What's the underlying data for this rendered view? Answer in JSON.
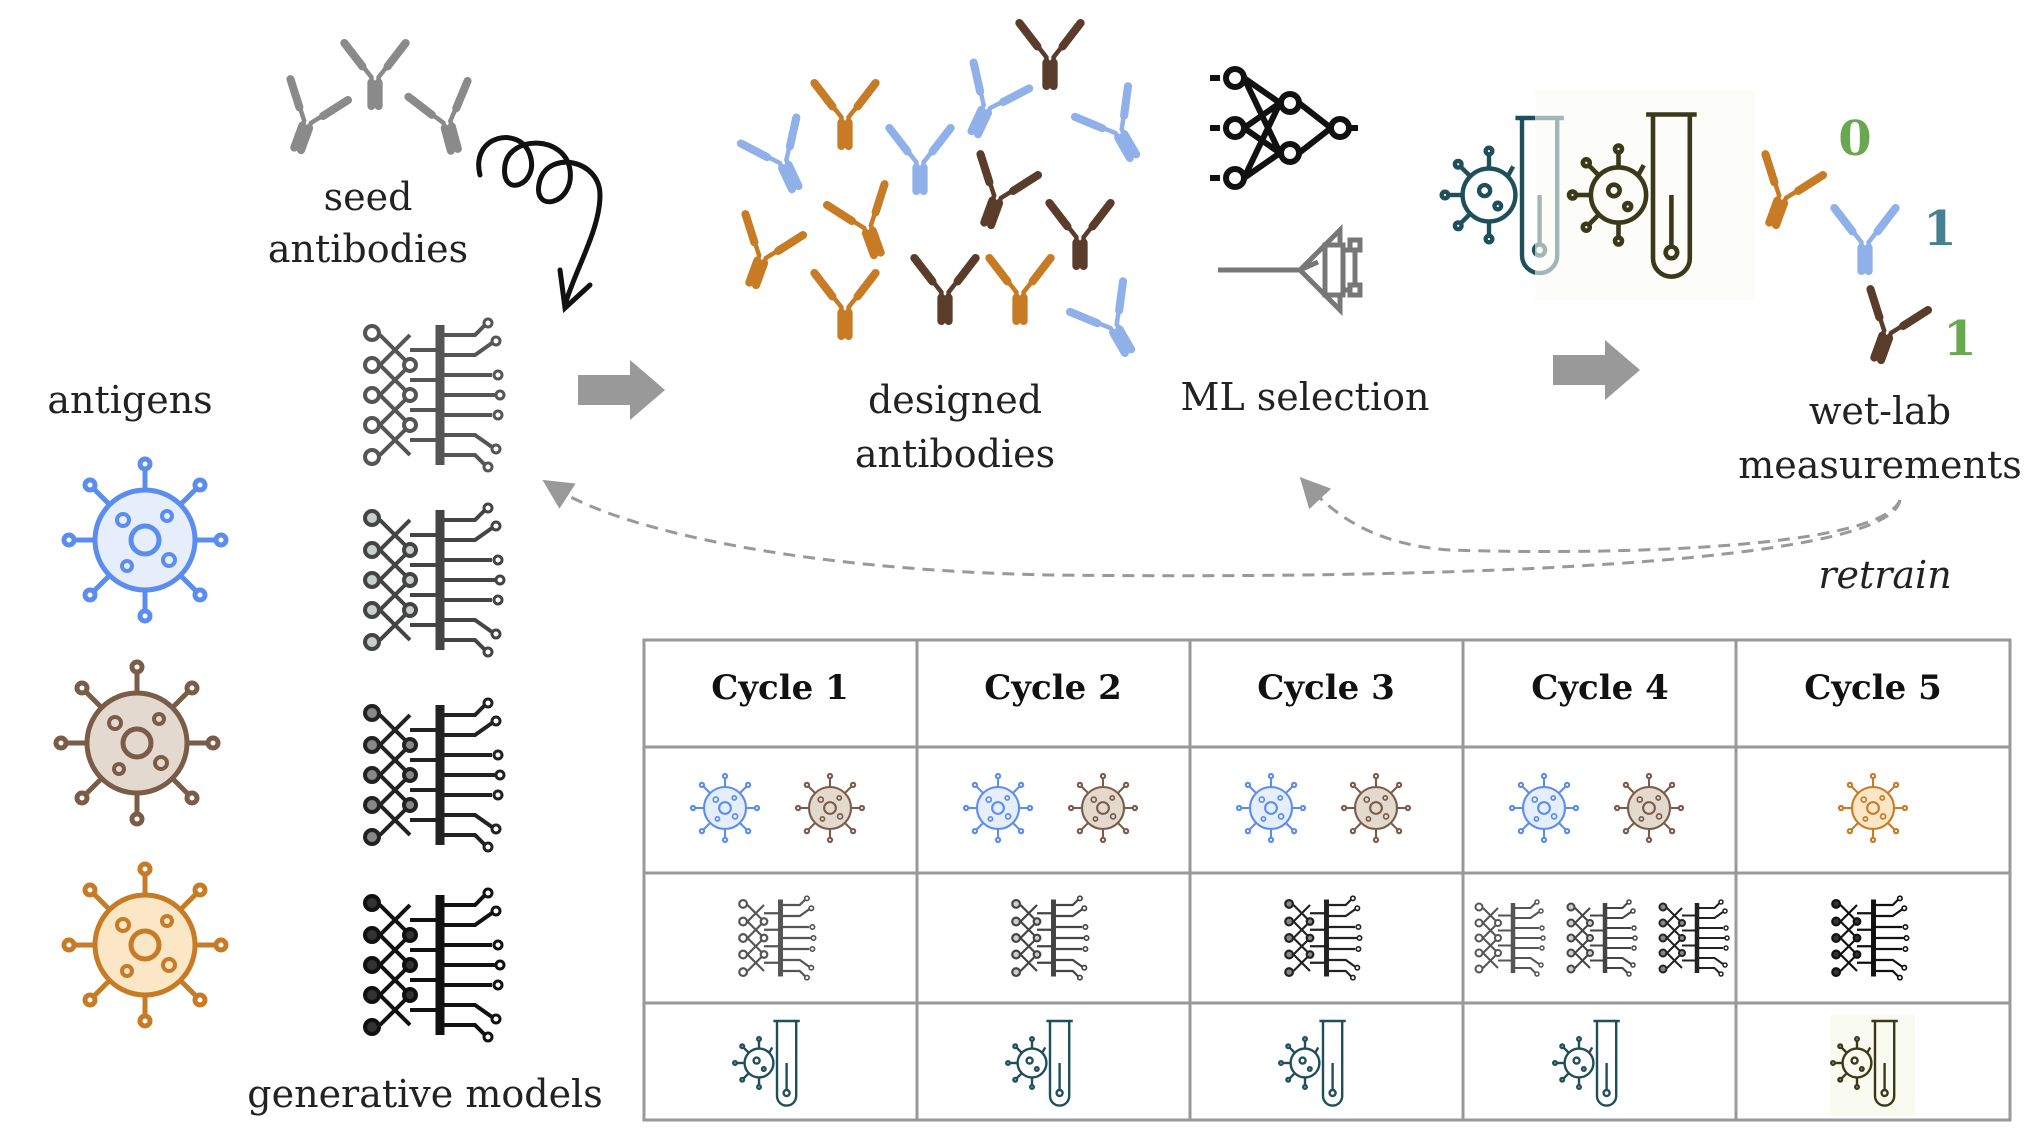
{
  "labels": {
    "seed_antibodies_1": "seed",
    "seed_antibodies_2": "antibodies",
    "antigens": "antigens",
    "generative_models": "generative models",
    "designed_antibodies_1": "designed",
    "designed_antibodies_2": "antibodies",
    "ml_selection": "ML selection",
    "wetlab_1": "wet-lab",
    "wetlab_2": "measurements",
    "retrain": "retrain"
  },
  "measurements": [
    {
      "value": "0",
      "color": "#6aa84f"
    },
    {
      "value": "1",
      "color": "#45818e"
    },
    {
      "value": "1",
      "color": "#6aa84f"
    }
  ],
  "table": {
    "headers": [
      "Cycle 1",
      "Cycle 2",
      "Cycle 3",
      "Cycle 4",
      "Cycle 5"
    ]
  },
  "colors": {
    "antigen_blue": "#5b8def",
    "antigen_brown": "#7a5c48",
    "antigen_orange": "#d48a2a",
    "antibody_gray": "#8a8a8a",
    "antibody_blue": "#8fb0e8",
    "antibody_orange": "#c77b24",
    "antibody_dark": "#5a3c2a",
    "arrow_gray": "#999999",
    "testtube_teal": "#1f4f5a",
    "testtube_olive": "#3a3a1a"
  },
  "icons": [
    "antibody-icon",
    "virus-icon",
    "neural-net-icon",
    "funnel-icon",
    "test-tube-icon",
    "spiral-arrow-icon"
  ]
}
